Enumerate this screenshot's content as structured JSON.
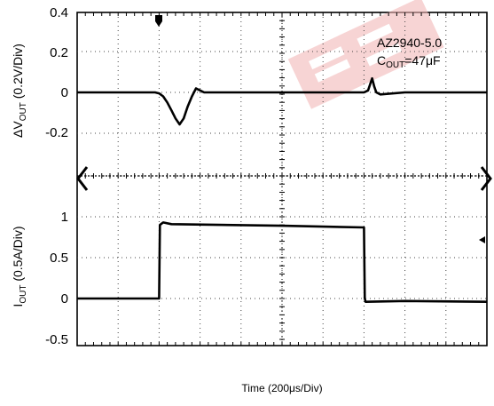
{
  "chart_data": [
    {
      "type": "line",
      "ylabel": {
        "prefix": "ΔV",
        "sub": "OUT",
        "suffix": " (0.2V/Div)"
      },
      "ylim": [
        -0.45,
        0.4
      ],
      "yticks": [
        0.4,
        0.2,
        0,
        -0.2
      ],
      "ytick_labels": [
        "0.4",
        "0.2",
        "0",
        "-0.2"
      ],
      "xlim": [
        0,
        10
      ],
      "grid": true,
      "annotation": {
        "line1": "AZ2940-5.0",
        "line2_prefix": "C",
        "line2_sub": "OUT",
        "line2_suffix": "=47μF"
      },
      "series": [
        {
          "x": [
            0,
            1.9,
            2.0,
            2.1,
            2.2,
            2.3,
            2.4,
            2.5,
            2.6,
            2.7,
            2.8,
            2.9,
            3.0,
            3.1,
            3.3,
            5.0,
            7.0,
            7.1,
            7.15,
            7.2,
            7.25,
            7.3,
            7.4,
            8.0,
            10
          ],
          "y": [
            0.0,
            0.0,
            -0.005,
            -0.02,
            -0.05,
            -0.09,
            -0.13,
            -0.16,
            -0.13,
            -0.07,
            -0.02,
            0.02,
            0.01,
            0.0,
            0.0,
            0.0,
            0.0,
            0.01,
            0.04,
            0.07,
            0.03,
            0.0,
            -0.01,
            0.0,
            0.0
          ]
        }
      ]
    },
    {
      "type": "line",
      "ylabel": {
        "prefix": "I",
        "sub": "OUT",
        "suffix": " (0.5A/Div)"
      },
      "ylim": [
        -0.5,
        1.1
      ],
      "yticks": [
        1,
        0.5,
        0,
        -0.5
      ],
      "ytick_labels": [
        "1",
        "0.5",
        "0",
        "-0.5"
      ],
      "xlim": [
        0,
        10
      ],
      "xlabel": "Time (200μs/Div)",
      "grid": true,
      "series": [
        {
          "x": [
            0,
            2.0,
            2.02,
            2.1,
            2.3,
            5.0,
            7.0,
            7.02,
            7.04,
            8.0,
            10
          ],
          "y": [
            0.0,
            0.0,
            0.9,
            0.93,
            0.91,
            0.89,
            0.87,
            0.0,
            -0.04,
            -0.03,
            -0.04
          ]
        }
      ]
    }
  ]
}
